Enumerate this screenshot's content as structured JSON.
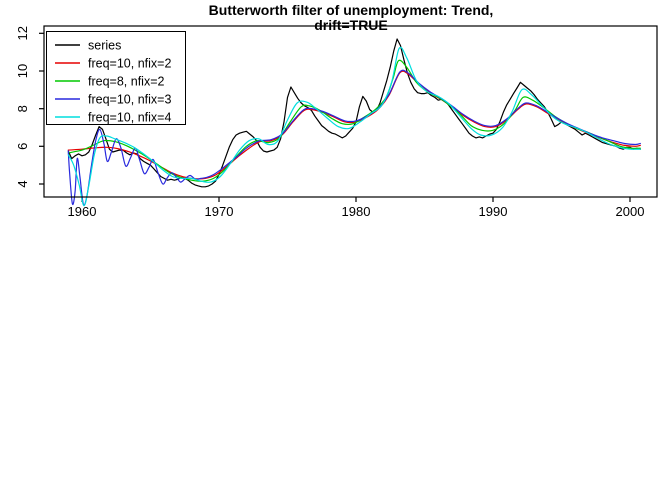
{
  "title": {
    "line1": "Butterworth filter of unemployment: Trend,",
    "line2": "drift=TRUE"
  },
  "chart_data": {
    "type": "line",
    "title": "Butterworth filter of unemployment: Trend, drift=TRUE",
    "xlabel": "",
    "ylabel": "",
    "x_axis": {
      "ticks": [
        1960,
        1970,
        1980,
        1990,
        2000
      ],
      "range": [
        1957.23,
        2001.97
      ]
    },
    "y_axis": {
      "ticks": [
        4,
        6,
        8,
        10,
        12
      ],
      "range": [
        3.31,
        12.39
      ]
    },
    "grid": false,
    "legend": {
      "position": "topleft",
      "items": [
        {
          "label": "series",
          "color": "#000000"
        },
        {
          "label": "freq=10, nfix=2",
          "color": "#e60000"
        },
        {
          "label": "freq=8, nfix=2",
          "color": "#00c800"
        },
        {
          "label": "freq=10, nfix=3",
          "color": "#2929dd"
        },
        {
          "label": "freq=10, nfix=4",
          "color": "#00dede"
        }
      ]
    },
    "series": [
      {
        "name": "series",
        "color": "#000000",
        "smooth": false,
        "start": 1959,
        "step": 0.25,
        "values": [
          5.75,
          5.35,
          5.5,
          5.6,
          5.5,
          5.55,
          5.7,
          6.1,
          6.6,
          7.05,
          6.9,
          6.4,
          5.85,
          5.7,
          5.75,
          5.8,
          5.8,
          5.65,
          5.55,
          5.65,
          5.6,
          5.35,
          5.2,
          5.1,
          5.0,
          4.8,
          4.6,
          4.4,
          4.3,
          4.2,
          4.25,
          4.2,
          4.25,
          4.35,
          4.3,
          4.2,
          4.05,
          3.95,
          3.9,
          3.85,
          3.85,
          3.9,
          4.0,
          4.15,
          4.5,
          4.95,
          5.45,
          5.95,
          6.35,
          6.6,
          6.7,
          6.75,
          6.8,
          6.65,
          6.5,
          6.3,
          5.95,
          5.75,
          5.7,
          5.75,
          5.8,
          5.95,
          6.4,
          7.3,
          8.6,
          9.15,
          8.85,
          8.55,
          8.3,
          8.15,
          8.05,
          7.9,
          7.6,
          7.35,
          7.1,
          6.95,
          6.8,
          6.7,
          6.65,
          6.55,
          6.45,
          6.55,
          6.75,
          6.95,
          7.3,
          8.1,
          8.65,
          8.4,
          7.95,
          7.8,
          7.9,
          8.3,
          8.9,
          9.5,
          10.2,
          11.05,
          11.7,
          11.35,
          10.6,
          9.9,
          9.4,
          9.05,
          8.85,
          8.8,
          8.8,
          8.85,
          8.7,
          8.6,
          8.45,
          8.5,
          8.4,
          8.2,
          7.95,
          7.7,
          7.45,
          7.2,
          6.95,
          6.7,
          6.55,
          6.45,
          6.5,
          6.45,
          6.55,
          6.65,
          6.7,
          6.9,
          7.3,
          7.8,
          8.2,
          8.5,
          8.8,
          9.1,
          9.4,
          9.25,
          9.1,
          8.95,
          8.75,
          8.5,
          8.3,
          8.1,
          7.8,
          7.45,
          7.05,
          7.15,
          7.3,
          7.2,
          7.1,
          7.0,
          6.9,
          6.75,
          6.6,
          6.7,
          6.6,
          6.5,
          6.4,
          6.3,
          6.2,
          6.15,
          6.1,
          6.05,
          6.0,
          5.9,
          5.85,
          5.95,
          5.95,
          5.85,
          5.9,
          5.85
        ]
      },
      {
        "name": "freq=10, nfix=2",
        "color": "#e60000",
        "smooth": true,
        "points": [
          [
            1959.0,
            5.8
          ],
          [
            1960,
            5.85
          ],
          [
            1961,
            5.92
          ],
          [
            1961.8,
            5.95
          ],
          [
            1962.6,
            5.88
          ],
          [
            1963.4,
            5.72
          ],
          [
            1964.2,
            5.5
          ],
          [
            1965,
            5.22
          ],
          [
            1965.8,
            4.9
          ],
          [
            1966.6,
            4.58
          ],
          [
            1967.4,
            4.38
          ],
          [
            1968.2,
            4.28
          ],
          [
            1969,
            4.3
          ],
          [
            1969.8,
            4.5
          ],
          [
            1970.6,
            4.95
          ],
          [
            1971.4,
            5.45
          ],
          [
            1972.2,
            5.9
          ],
          [
            1973,
            6.25
          ],
          [
            1973.8,
            6.3
          ],
          [
            1974.6,
            6.6
          ],
          [
            1975.4,
            7.3
          ],
          [
            1976.2,
            7.9
          ],
          [
            1976.8,
            7.95
          ],
          [
            1977.6,
            7.8
          ],
          [
            1978.4,
            7.55
          ],
          [
            1979.2,
            7.3
          ],
          [
            1980,
            7.3
          ],
          [
            1980.8,
            7.55
          ],
          [
            1981.6,
            7.95
          ],
          [
            1982.4,
            8.7
          ],
          [
            1983.2,
            9.9
          ],
          [
            1983.8,
            9.85
          ],
          [
            1984.6,
            9.3
          ],
          [
            1985.4,
            8.85
          ],
          [
            1986.2,
            8.5
          ],
          [
            1987,
            8.1
          ],
          [
            1987.8,
            7.65
          ],
          [
            1988.6,
            7.3
          ],
          [
            1989.4,
            7.05
          ],
          [
            1990.2,
            7.05
          ],
          [
            1991,
            7.4
          ],
          [
            1991.8,
            7.95
          ],
          [
            1992.4,
            8.25
          ],
          [
            1993.2,
            8.1
          ],
          [
            1994,
            7.75
          ],
          [
            1994.8,
            7.4
          ],
          [
            1995.6,
            7.1
          ],
          [
            1996.4,
            6.85
          ],
          [
            1997.2,
            6.6
          ],
          [
            1998,
            6.4
          ],
          [
            1998.8,
            6.2
          ],
          [
            1999.6,
            6.05
          ],
          [
            2000.4,
            6.0
          ],
          [
            2000.75,
            6.05
          ]
        ]
      },
      {
        "name": "freq=8, nfix=2",
        "color": "#00c800",
        "smooth": true,
        "points": [
          [
            1959.0,
            5.65
          ],
          [
            1960,
            5.8
          ],
          [
            1960.8,
            6.05
          ],
          [
            1961.6,
            6.3
          ],
          [
            1962.4,
            6.25
          ],
          [
            1963.2,
            6.05
          ],
          [
            1964,
            5.75
          ],
          [
            1964.8,
            5.4
          ],
          [
            1965.6,
            5.0
          ],
          [
            1966.4,
            4.6
          ],
          [
            1967.2,
            4.35
          ],
          [
            1968,
            4.2
          ],
          [
            1968.8,
            4.15
          ],
          [
            1969.6,
            4.3
          ],
          [
            1970.4,
            4.75
          ],
          [
            1971.2,
            5.4
          ],
          [
            1972,
            6.0
          ],
          [
            1972.8,
            6.3
          ],
          [
            1973.6,
            6.2
          ],
          [
            1974.4,
            6.45
          ],
          [
            1975.2,
            7.3
          ],
          [
            1976,
            8.1
          ],
          [
            1976.6,
            8.15
          ],
          [
            1977.4,
            7.9
          ],
          [
            1978.2,
            7.5
          ],
          [
            1979,
            7.2
          ],
          [
            1979.8,
            7.2
          ],
          [
            1980.6,
            7.55
          ],
          [
            1981.4,
            7.95
          ],
          [
            1982.2,
            8.6
          ],
          [
            1982.7,
            9.6
          ],
          [
            1983.1,
            10.55
          ],
          [
            1983.7,
            10.2
          ],
          [
            1984.4,
            9.4
          ],
          [
            1985.2,
            8.9
          ],
          [
            1986,
            8.6
          ],
          [
            1986.8,
            8.2
          ],
          [
            1987.6,
            7.7
          ],
          [
            1988.4,
            7.1
          ],
          [
            1989.2,
            6.85
          ],
          [
            1990,
            6.85
          ],
          [
            1990.8,
            7.2
          ],
          [
            1991.6,
            7.9
          ],
          [
            1992.2,
            8.6
          ],
          [
            1992.9,
            8.45
          ],
          [
            1993.7,
            8.05
          ],
          [
            1994.5,
            7.6
          ],
          [
            1995.3,
            7.25
          ],
          [
            1996.1,
            6.95
          ],
          [
            1996.9,
            6.75
          ],
          [
            1997.7,
            6.5
          ],
          [
            1998.5,
            6.25
          ],
          [
            1999.3,
            6.0
          ],
          [
            2000.1,
            5.9
          ],
          [
            2000.75,
            5.9
          ]
        ]
      },
      {
        "name": "freq=10, nfix=3",
        "color": "#2929dd",
        "smooth": true,
        "points": [
          [
            1959.0,
            5.75
          ],
          [
            1959.1,
            4.6
          ],
          [
            1959.3,
            2.95
          ],
          [
            1959.5,
            3.6
          ],
          [
            1959.65,
            5.35
          ],
          [
            1959.85,
            4.4
          ],
          [
            1960.1,
            2.95
          ],
          [
            1960.35,
            3.3
          ],
          [
            1960.7,
            5.0
          ],
          [
            1961.0,
            6.3
          ],
          [
            1961.3,
            6.9
          ],
          [
            1961.6,
            6.15
          ],
          [
            1961.85,
            5.2
          ],
          [
            1962.15,
            5.7
          ],
          [
            1962.5,
            6.4
          ],
          [
            1962.85,
            5.9
          ],
          [
            1963.2,
            4.95
          ],
          [
            1963.55,
            5.4
          ],
          [
            1963.9,
            5.9
          ],
          [
            1964.2,
            5.3
          ],
          [
            1964.55,
            4.55
          ],
          [
            1964.9,
            4.9
          ],
          [
            1965.2,
            5.3
          ],
          [
            1965.55,
            4.6
          ],
          [
            1965.9,
            4.0
          ],
          [
            1966.2,
            4.3
          ],
          [
            1966.55,
            4.6
          ],
          [
            1966.9,
            4.35
          ],
          [
            1967.2,
            4.1
          ],
          [
            1967.55,
            4.3
          ],
          [
            1967.9,
            4.45
          ],
          [
            1968.3,
            4.25
          ],
          [
            1968.7,
            4.3
          ],
          [
            1969.1,
            4.35
          ],
          [
            1969.6,
            4.5
          ],
          [
            1970.2,
            4.8
          ],
          [
            1970.8,
            5.15
          ],
          [
            1971.4,
            5.5
          ],
          [
            1971.9,
            5.85
          ],
          [
            1972.4,
            6.1
          ],
          [
            1973,
            6.3
          ],
          [
            1973.8,
            6.35
          ],
          [
            1974.6,
            6.65
          ],
          [
            1975.4,
            7.35
          ],
          [
            1976.2,
            7.95
          ],
          [
            1976.8,
            8.0
          ],
          [
            1977.6,
            7.85
          ],
          [
            1978.4,
            7.6
          ],
          [
            1979.2,
            7.35
          ],
          [
            1980,
            7.35
          ],
          [
            1980.8,
            7.6
          ],
          [
            1981.6,
            8.0
          ],
          [
            1982.4,
            8.75
          ],
          [
            1983.2,
            9.95
          ],
          [
            1983.8,
            9.9
          ],
          [
            1984.6,
            9.35
          ],
          [
            1985.4,
            8.9
          ],
          [
            1986.2,
            8.55
          ],
          [
            1987,
            8.15
          ],
          [
            1987.8,
            7.7
          ],
          [
            1988.6,
            7.35
          ],
          [
            1989.4,
            7.1
          ],
          [
            1990.2,
            7.1
          ],
          [
            1991,
            7.45
          ],
          [
            1991.8,
            8.0
          ],
          [
            1992.4,
            8.3
          ],
          [
            1993.2,
            8.15
          ],
          [
            1994,
            7.8
          ],
          [
            1994.8,
            7.45
          ],
          [
            1995.6,
            7.15
          ],
          [
            1996.4,
            6.9
          ],
          [
            1997.2,
            6.65
          ],
          [
            1998,
            6.45
          ],
          [
            1998.8,
            6.3
          ],
          [
            1999.6,
            6.15
          ],
          [
            2000.4,
            6.1
          ],
          [
            2000.75,
            6.15
          ]
        ]
      },
      {
        "name": "freq=10, nfix=4",
        "color": "#00dede",
        "smooth": true,
        "points": [
          [
            1959.0,
            5.55
          ],
          [
            1959.4,
            5.0
          ],
          [
            1959.8,
            3.95
          ],
          [
            1960.15,
            2.85
          ],
          [
            1960.5,
            3.9
          ],
          [
            1960.9,
            5.55
          ],
          [
            1961.3,
            6.45
          ],
          [
            1961.8,
            6.55
          ],
          [
            1962.4,
            6.4
          ],
          [
            1963.1,
            6.2
          ],
          [
            1963.8,
            5.95
          ],
          [
            1964.5,
            5.6
          ],
          [
            1965.2,
            5.2
          ],
          [
            1965.9,
            4.75
          ],
          [
            1966.6,
            4.4
          ],
          [
            1967.3,
            4.3
          ],
          [
            1968,
            4.3
          ],
          [
            1968.7,
            4.15
          ],
          [
            1969.4,
            4.1
          ],
          [
            1970.1,
            4.4
          ],
          [
            1970.8,
            5.05
          ],
          [
            1971.5,
            5.8
          ],
          [
            1972.2,
            6.3
          ],
          [
            1972.9,
            6.4
          ],
          [
            1973.6,
            6.1
          ],
          [
            1974.3,
            6.3
          ],
          [
            1975,
            7.4
          ],
          [
            1975.7,
            8.3
          ],
          [
            1976.4,
            8.35
          ],
          [
            1977.1,
            8.0
          ],
          [
            1977.9,
            7.5
          ],
          [
            1978.7,
            7.05
          ],
          [
            1979.5,
            6.95
          ],
          [
            1980.3,
            7.3
          ],
          [
            1981.1,
            7.75
          ],
          [
            1981.9,
            8.2
          ],
          [
            1982.6,
            9.4
          ],
          [
            1983.15,
            11.2
          ],
          [
            1983.7,
            10.7
          ],
          [
            1984.4,
            9.5
          ],
          [
            1985.2,
            8.9
          ],
          [
            1986,
            8.65
          ],
          [
            1986.8,
            8.25
          ],
          [
            1987.6,
            7.6
          ],
          [
            1988.4,
            6.95
          ],
          [
            1989.1,
            6.6
          ],
          [
            1989.9,
            6.6
          ],
          [
            1990.7,
            7.0
          ],
          [
            1991.4,
            7.85
          ],
          [
            1992.1,
            9.0
          ],
          [
            1992.8,
            8.75
          ],
          [
            1993.6,
            8.15
          ],
          [
            1994.4,
            7.55
          ],
          [
            1995.2,
            7.2
          ],
          [
            1996,
            7.0
          ],
          [
            1996.8,
            6.75
          ],
          [
            1997.6,
            6.45
          ],
          [
            1998.4,
            6.15
          ],
          [
            1999.2,
            5.95
          ],
          [
            2000,
            5.85
          ],
          [
            2000.75,
            5.85
          ]
        ]
      }
    ]
  }
}
